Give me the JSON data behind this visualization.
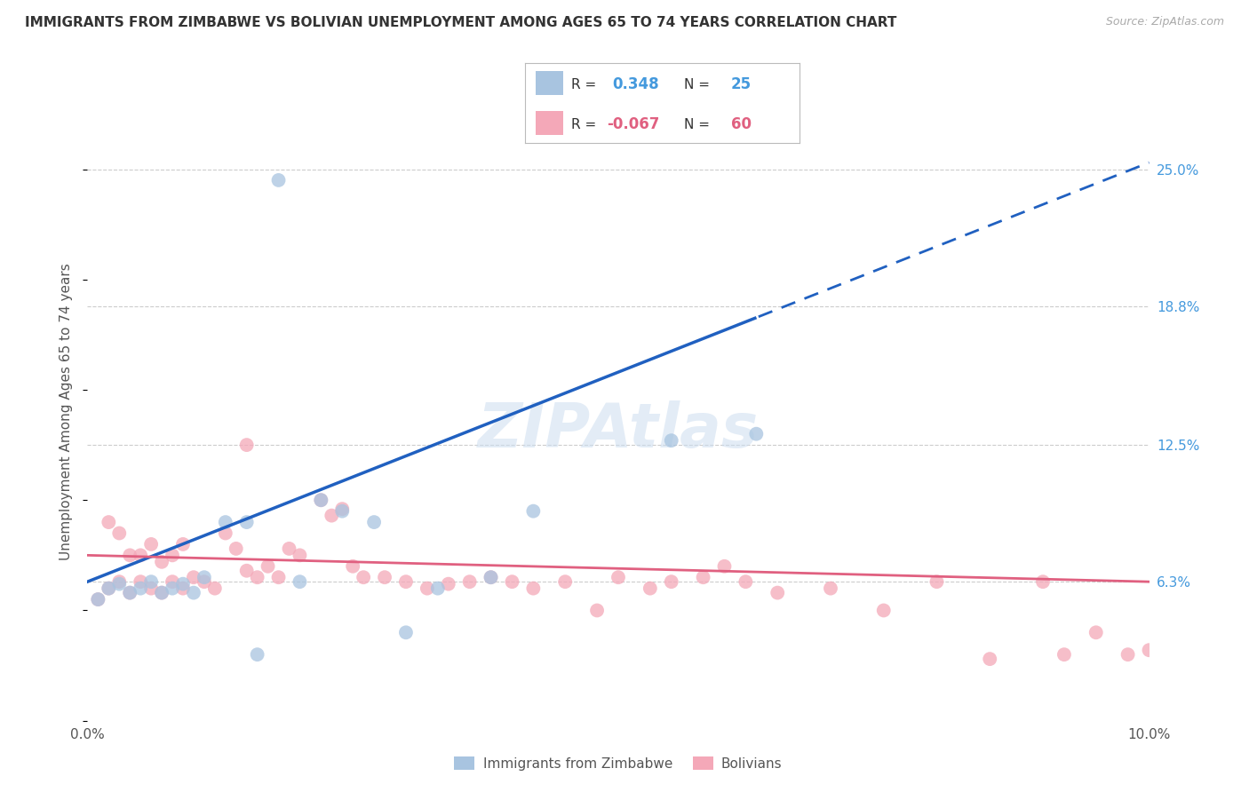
{
  "title": "IMMIGRANTS FROM ZIMBABWE VS BOLIVIAN UNEMPLOYMENT AMONG AGES 65 TO 74 YEARS CORRELATION CHART",
  "source": "Source: ZipAtlas.com",
  "ylabel": "Unemployment Among Ages 65 to 74 years",
  "xlim": [
    0.0,
    0.1
  ],
  "ylim": [
    0.0,
    0.28
  ],
  "ytick_labels_right": [
    "25.0%",
    "18.8%",
    "12.5%",
    "6.3%"
  ],
  "ytick_values_right": [
    0.25,
    0.188,
    0.125,
    0.063
  ],
  "r_zimbabwe": 0.348,
  "n_zimbabwe": 25,
  "r_bolivian": -0.067,
  "n_bolivian": 60,
  "color_zimbabwe": "#a8c4e0",
  "color_bolivian": "#f4a8b8",
  "line_color_zimbabwe": "#2060c0",
  "line_color_bolivian": "#e06080",
  "legend_label_zimbabwe": "Immigrants from Zimbabwe",
  "legend_label_bolivian": "Bolivians",
  "watermark": "ZIPAtlas",
  "background_color": "#ffffff",
  "grid_color": "#cccccc",
  "zim_x": [
    0.001,
    0.002,
    0.003,
    0.004,
    0.005,
    0.006,
    0.007,
    0.008,
    0.009,
    0.01,
    0.011,
    0.013,
    0.015,
    0.016,
    0.018,
    0.02,
    0.022,
    0.024,
    0.027,
    0.03,
    0.033,
    0.038,
    0.042,
    0.055,
    0.063
  ],
  "zim_y": [
    0.055,
    0.06,
    0.062,
    0.058,
    0.06,
    0.063,
    0.058,
    0.06,
    0.062,
    0.058,
    0.065,
    0.09,
    0.09,
    0.03,
    0.245,
    0.063,
    0.1,
    0.095,
    0.09,
    0.04,
    0.06,
    0.065,
    0.095,
    0.127,
    0.13
  ],
  "bol_x": [
    0.001,
    0.002,
    0.002,
    0.003,
    0.003,
    0.004,
    0.004,
    0.005,
    0.005,
    0.006,
    0.006,
    0.007,
    0.007,
    0.008,
    0.008,
    0.009,
    0.009,
    0.01,
    0.011,
    0.012,
    0.013,
    0.014,
    0.015,
    0.015,
    0.016,
    0.017,
    0.018,
    0.019,
    0.02,
    0.022,
    0.023,
    0.024,
    0.025,
    0.026,
    0.028,
    0.03,
    0.032,
    0.034,
    0.036,
    0.038,
    0.04,
    0.042,
    0.045,
    0.048,
    0.05,
    0.053,
    0.055,
    0.058,
    0.06,
    0.062,
    0.065,
    0.07,
    0.075,
    0.08,
    0.085,
    0.09,
    0.092,
    0.095,
    0.098,
    0.1
  ],
  "bol_y": [
    0.055,
    0.06,
    0.09,
    0.063,
    0.085,
    0.058,
    0.075,
    0.063,
    0.075,
    0.06,
    0.08,
    0.058,
    0.072,
    0.063,
    0.075,
    0.06,
    0.08,
    0.065,
    0.063,
    0.06,
    0.085,
    0.078,
    0.068,
    0.125,
    0.065,
    0.07,
    0.065,
    0.078,
    0.075,
    0.1,
    0.093,
    0.096,
    0.07,
    0.065,
    0.065,
    0.063,
    0.06,
    0.062,
    0.063,
    0.065,
    0.063,
    0.06,
    0.063,
    0.05,
    0.065,
    0.06,
    0.063,
    0.065,
    0.07,
    0.063,
    0.058,
    0.06,
    0.05,
    0.063,
    0.028,
    0.063,
    0.03,
    0.04,
    0.03,
    0.032
  ]
}
